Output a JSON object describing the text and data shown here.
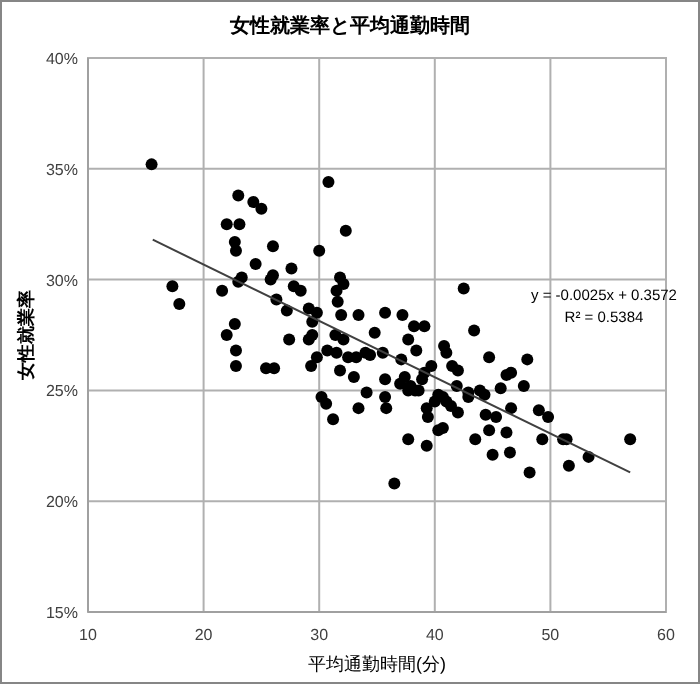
{
  "chart_data": {
    "type": "scatter",
    "title": "女性就業率と平均通勤時間",
    "xlabel": "平均通勤時間(分)",
    "ylabel": "女性就業率",
    "xlim": [
      10,
      60
    ],
    "ylim": [
      0.15,
      0.4
    ],
    "xticks": [
      10,
      20,
      30,
      40,
      50,
      60
    ],
    "yticks": [
      {
        "value": 0.15,
        "label": "15%"
      },
      {
        "value": 0.2,
        "label": "20%"
      },
      {
        "value": 0.25,
        "label": "25%"
      },
      {
        "value": 0.3,
        "label": "30%"
      },
      {
        "value": 0.35,
        "label": "35%"
      },
      {
        "value": 0.4,
        "label": "40%"
      }
    ],
    "grid": true,
    "annotations": [
      "y = -0.0025x + 0.3572",
      "R² = 0.5384"
    ],
    "series": [
      {
        "marker": "circle",
        "color": "#000000",
        "x": [
          15.5,
          23.0,
          24.3,
          25.0,
          30.8,
          22.0,
          23.1,
          22.7,
          22.8,
          26.0,
          24.5,
          30.0,
          32.3,
          23.3,
          23.0,
          25.8,
          26.0,
          27.6,
          17.3,
          17.9,
          21.6,
          27.8,
          28.4,
          26.3,
          27.2,
          29.1,
          29.8,
          29.4,
          31.8,
          32.1,
          31.5,
          31.6,
          31.9,
          33.4,
          34.8,
          22.7,
          22.0,
          22.8,
          22.8,
          25.4,
          26.1,
          27.4,
          29.1,
          29.4,
          29.3,
          29.8,
          31.4,
          32.1,
          30.7,
          31.5,
          32.5,
          33.2,
          34.0,
          34.4,
          31.8,
          33.0,
          30.2,
          34.1,
          42.5,
          43.4,
          35.7,
          37.2,
          38.2,
          39.1,
          37.7,
          38.4,
          40.8,
          41.0,
          44.7,
          48.0,
          35.5,
          37.1,
          39.7,
          39.1,
          41.5,
          42.0,
          38.9,
          37.4,
          37.0,
          37.9,
          38.3,
          35.7,
          35.7,
          40.3,
          40.7,
          42.9,
          43.9,
          44.3,
          45.7,
          46.6,
          46.2,
          47.7,
          30.6,
          31.2,
          33.4,
          35.8,
          37.7,
          36.5,
          39.3,
          39.3,
          39.4,
          40.0,
          40.3,
          40.7,
          41.0,
          41.4,
          42.0,
          41.9,
          42.9,
          43.5,
          44.4,
          45.3,
          44.7,
          45.0,
          46.2,
          46.5,
          46.6,
          48.2,
          49.0,
          49.8,
          49.3,
          51.1,
          51.4,
          51.6,
          53.3,
          56.9,
          37.7,
          38.6
        ],
        "values": [
          0.352,
          0.338,
          0.335,
          0.332,
          0.344,
          0.325,
          0.325,
          0.317,
          0.313,
          0.315,
          0.307,
          0.313,
          0.322,
          0.301,
          0.299,
          0.3,
          0.302,
          0.305,
          0.297,
          0.289,
          0.295,
          0.297,
          0.295,
          0.291,
          0.286,
          0.287,
          0.285,
          0.281,
          0.301,
          0.298,
          0.295,
          0.29,
          0.284,
          0.284,
          0.276,
          0.28,
          0.275,
          0.268,
          0.261,
          0.26,
          0.26,
          0.273,
          0.273,
          0.275,
          0.261,
          0.265,
          0.275,
          0.273,
          0.268,
          0.267,
          0.265,
          0.265,
          0.267,
          0.266,
          0.259,
          0.256,
          0.247,
          0.249,
          0.296,
          0.277,
          0.285,
          0.284,
          0.279,
          0.279,
          0.273,
          0.268,
          0.27,
          0.267,
          0.265,
          0.264,
          0.267,
          0.264,
          0.261,
          0.258,
          0.261,
          0.259,
          0.255,
          0.256,
          0.253,
          0.252,
          0.25,
          0.255,
          0.247,
          0.248,
          0.247,
          0.249,
          0.25,
          0.248,
          0.251,
          0.258,
          0.257,
          0.252,
          0.244,
          0.237,
          0.242,
          0.242,
          0.228,
          0.208,
          0.225,
          0.242,
          0.238,
          0.245,
          0.232,
          0.233,
          0.245,
          0.243,
          0.24,
          0.252,
          0.247,
          0.228,
          0.239,
          0.238,
          0.232,
          0.221,
          0.231,
          0.222,
          0.242,
          0.213,
          0.241,
          0.238,
          0.228,
          0.228,
          0.228,
          0.216,
          0.22,
          0.228,
          0.25,
          0.25
        ]
      },
      {
        "type": "line",
        "marker": "none",
        "color": "#404040",
        "x": [
          15.6,
          56.9
        ],
        "values": [
          0.318,
          0.213
        ]
      }
    ]
  }
}
